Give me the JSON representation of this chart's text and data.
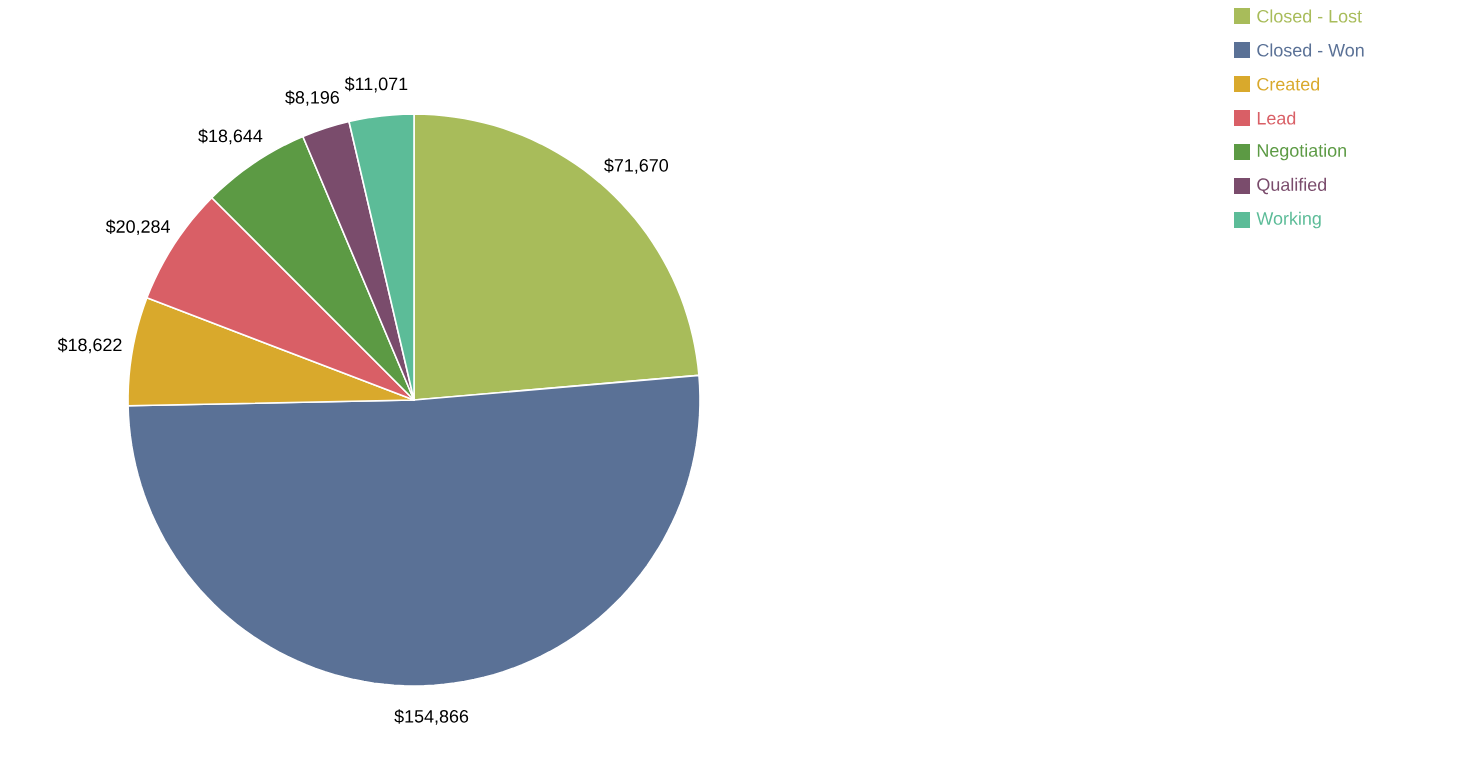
{
  "chart_data": {
    "type": "pie",
    "categories": [
      "Closed - Lost",
      "Closed - Won",
      "Created",
      "Lead",
      "Negotiation",
      "Qualified",
      "Working"
    ],
    "values": [
      71670,
      154866,
      18622,
      20284,
      18644,
      8196,
      11071
    ],
    "colors": [
      "#a8bc5a",
      "#5a7196",
      "#d9a92c",
      "#d95f66",
      "#5c9a44",
      "#7a4c6c",
      "#5cbc98"
    ],
    "value_labels": [
      "$71,670",
      "$154,866",
      "$18,622",
      "$20,284",
      "$18,644",
      "$8,196",
      "$11,071"
    ],
    "legend": "top right"
  }
}
